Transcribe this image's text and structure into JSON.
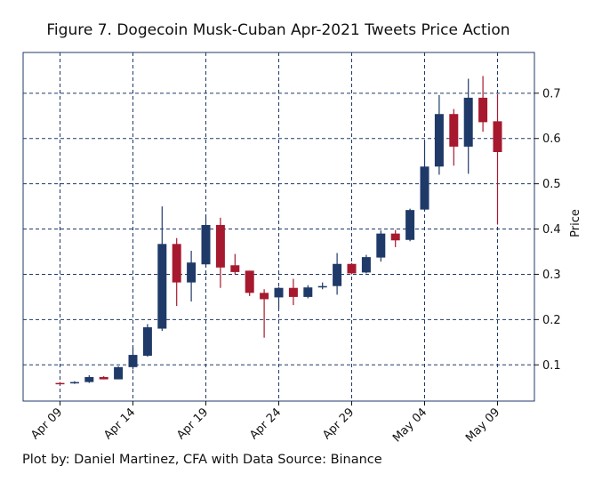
{
  "chart_data": {
    "type": "candlestick",
    "title": "Figure 7. Dogecoin Musk-Cuban Apr-2021 Tweets Price Action",
    "ylabel": "Price",
    "xlabel": "",
    "y_axis_side": "right",
    "ylim": [
      0.02,
      0.79
    ],
    "yticks": [
      0.1,
      0.2,
      0.3,
      0.4,
      0.5,
      0.6,
      0.7
    ],
    "ytick_labels": [
      "0.1",
      "0.2",
      "0.3",
      "0.4",
      "0.5",
      "0.6",
      "0.7"
    ],
    "xticks": [
      "2021-04-09",
      "2021-04-14",
      "2021-04-19",
      "2021-04-24",
      "2021-04-29",
      "2021-05-04",
      "2021-05-09"
    ],
    "xtick_labels": [
      "Apr 09",
      "Apr 14",
      "Apr 19",
      "Apr 24",
      "Apr 29",
      "May 04",
      "May 09"
    ],
    "grid": true,
    "colors": {
      "up": "#1f3a68",
      "down": "#a6192e",
      "grid": "#1f3a68",
      "axes": "#1f3a68"
    },
    "candles": [
      {
        "date": "2021-04-09",
        "open": 0.06,
        "high": 0.062,
        "low": 0.058,
        "close": 0.059
      },
      {
        "date": "2021-04-10",
        "open": 0.059,
        "high": 0.064,
        "low": 0.058,
        "close": 0.062
      },
      {
        "date": "2021-04-11",
        "open": 0.062,
        "high": 0.077,
        "low": 0.06,
        "close": 0.073
      },
      {
        "date": "2021-04-12",
        "open": 0.073,
        "high": 0.075,
        "low": 0.068,
        "close": 0.068
      },
      {
        "date": "2021-04-13",
        "open": 0.068,
        "high": 0.097,
        "low": 0.068,
        "close": 0.095
      },
      {
        "date": "2021-04-14",
        "open": 0.095,
        "high": 0.14,
        "low": 0.09,
        "close": 0.122
      },
      {
        "date": "2021-04-15",
        "open": 0.12,
        "high": 0.19,
        "low": 0.118,
        "close": 0.183
      },
      {
        "date": "2021-04-16",
        "open": 0.18,
        "high": 0.45,
        "low": 0.175,
        "close": 0.367
      },
      {
        "date": "2021-04-17",
        "open": 0.367,
        "high": 0.38,
        "low": 0.23,
        "close": 0.282
      },
      {
        "date": "2021-04-18",
        "open": 0.282,
        "high": 0.352,
        "low": 0.24,
        "close": 0.326
      },
      {
        "date": "2021-04-19",
        "open": 0.322,
        "high": 0.432,
        "low": 0.315,
        "close": 0.409
      },
      {
        "date": "2021-04-20",
        "open": 0.409,
        "high": 0.425,
        "low": 0.27,
        "close": 0.315
      },
      {
        "date": "2021-04-21",
        "open": 0.32,
        "high": 0.345,
        "low": 0.3,
        "close": 0.305
      },
      {
        "date": "2021-04-22",
        "open": 0.308,
        "high": 0.308,
        "low": 0.252,
        "close": 0.259
      },
      {
        "date": "2021-04-23",
        "open": 0.259,
        "high": 0.267,
        "low": 0.16,
        "close": 0.245
      },
      {
        "date": "2021-04-24",
        "open": 0.249,
        "high": 0.272,
        "low": 0.223,
        "close": 0.27
      },
      {
        "date": "2021-04-25",
        "open": 0.27,
        "high": 0.29,
        "low": 0.232,
        "close": 0.25
      },
      {
        "date": "2021-04-26",
        "open": 0.25,
        "high": 0.276,
        "low": 0.247,
        "close": 0.271
      },
      {
        "date": "2021-04-27",
        "open": 0.271,
        "high": 0.282,
        "low": 0.267,
        "close": 0.274
      },
      {
        "date": "2021-04-28",
        "open": 0.274,
        "high": 0.347,
        "low": 0.255,
        "close": 0.323
      },
      {
        "date": "2021-04-29",
        "open": 0.323,
        "high": 0.325,
        "low": 0.3,
        "close": 0.302
      },
      {
        "date": "2021-04-30",
        "open": 0.304,
        "high": 0.343,
        "low": 0.302,
        "close": 0.338
      },
      {
        "date": "2021-05-01",
        "open": 0.337,
        "high": 0.397,
        "low": 0.328,
        "close": 0.39
      },
      {
        "date": "2021-05-02",
        "open": 0.39,
        "high": 0.398,
        "low": 0.36,
        "close": 0.375
      },
      {
        "date": "2021-05-03",
        "open": 0.376,
        "high": 0.445,
        "low": 0.373,
        "close": 0.442
      },
      {
        "date": "2021-05-04",
        "open": 0.443,
        "high": 0.595,
        "low": 0.44,
        "close": 0.538
      },
      {
        "date": "2021-05-05",
        "open": 0.538,
        "high": 0.696,
        "low": 0.52,
        "close": 0.654
      },
      {
        "date": "2021-05-06",
        "open": 0.654,
        "high": 0.665,
        "low": 0.54,
        "close": 0.582
      },
      {
        "date": "2021-05-07",
        "open": 0.582,
        "high": 0.732,
        "low": 0.522,
        "close": 0.69
      },
      {
        "date": "2021-05-08",
        "open": 0.69,
        "high": 0.738,
        "low": 0.615,
        "close": 0.636
      },
      {
        "date": "2021-05-09",
        "open": 0.638,
        "high": 0.698,
        "low": 0.41,
        "close": 0.57
      }
    ]
  },
  "footer": {
    "credit": "Plot by: Daniel Martinez, CFA with Data Source: Binance"
  }
}
